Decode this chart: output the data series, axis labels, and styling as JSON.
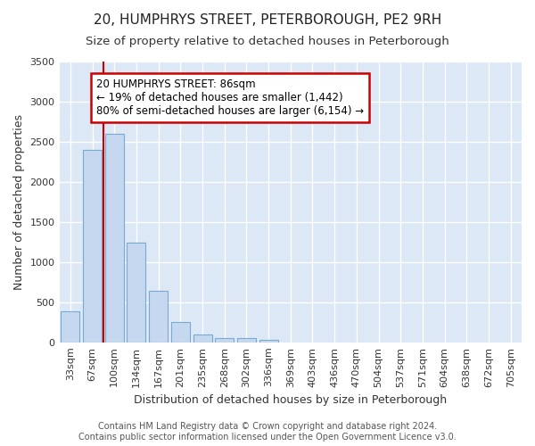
{
  "title": "20, HUMPHRYS STREET, PETERBOROUGH, PE2 9RH",
  "subtitle": "Size of property relative to detached houses in Peterborough",
  "xlabel": "Distribution of detached houses by size in Peterborough",
  "ylabel": "Number of detached properties",
  "footer_line1": "Contains HM Land Registry data © Crown copyright and database right 2024.",
  "footer_line2": "Contains public sector information licensed under the Open Government Licence v3.0.",
  "categories": [
    "33sqm",
    "67sqm",
    "100sqm",
    "134sqm",
    "167sqm",
    "201sqm",
    "235sqm",
    "268sqm",
    "302sqm",
    "336sqm",
    "369sqm",
    "403sqm",
    "436sqm",
    "470sqm",
    "504sqm",
    "537sqm",
    "571sqm",
    "604sqm",
    "638sqm",
    "672sqm",
    "705sqm"
  ],
  "values": [
    390,
    2400,
    2600,
    1240,
    640,
    255,
    95,
    55,
    50,
    35,
    0,
    0,
    0,
    0,
    0,
    0,
    0,
    0,
    0,
    0,
    0
  ],
  "bar_color": "#c5d8f0",
  "bar_edge_color": "#7aaad0",
  "ylim": [
    0,
    3500
  ],
  "yticks": [
    0,
    500,
    1000,
    1500,
    2000,
    2500,
    3000,
    3500
  ],
  "vline_x": 1.5,
  "vline_color": "#cc0000",
  "annotation_text": "20 HUMPHRYS STREET: 86sqm\n← 19% of detached houses are smaller (1,442)\n80% of semi-detached houses are larger (6,154) →",
  "annotation_box_color": "white",
  "annotation_box_edge_color": "#cc0000",
  "bg_color": "#ffffff",
  "plot_bg_color": "#dce8f5",
  "grid_color": "white",
  "title_fontsize": 11,
  "subtitle_fontsize": 9.5,
  "tick_fontsize": 8,
  "ylabel_fontsize": 9,
  "xlabel_fontsize": 9,
  "footer_fontsize": 7
}
